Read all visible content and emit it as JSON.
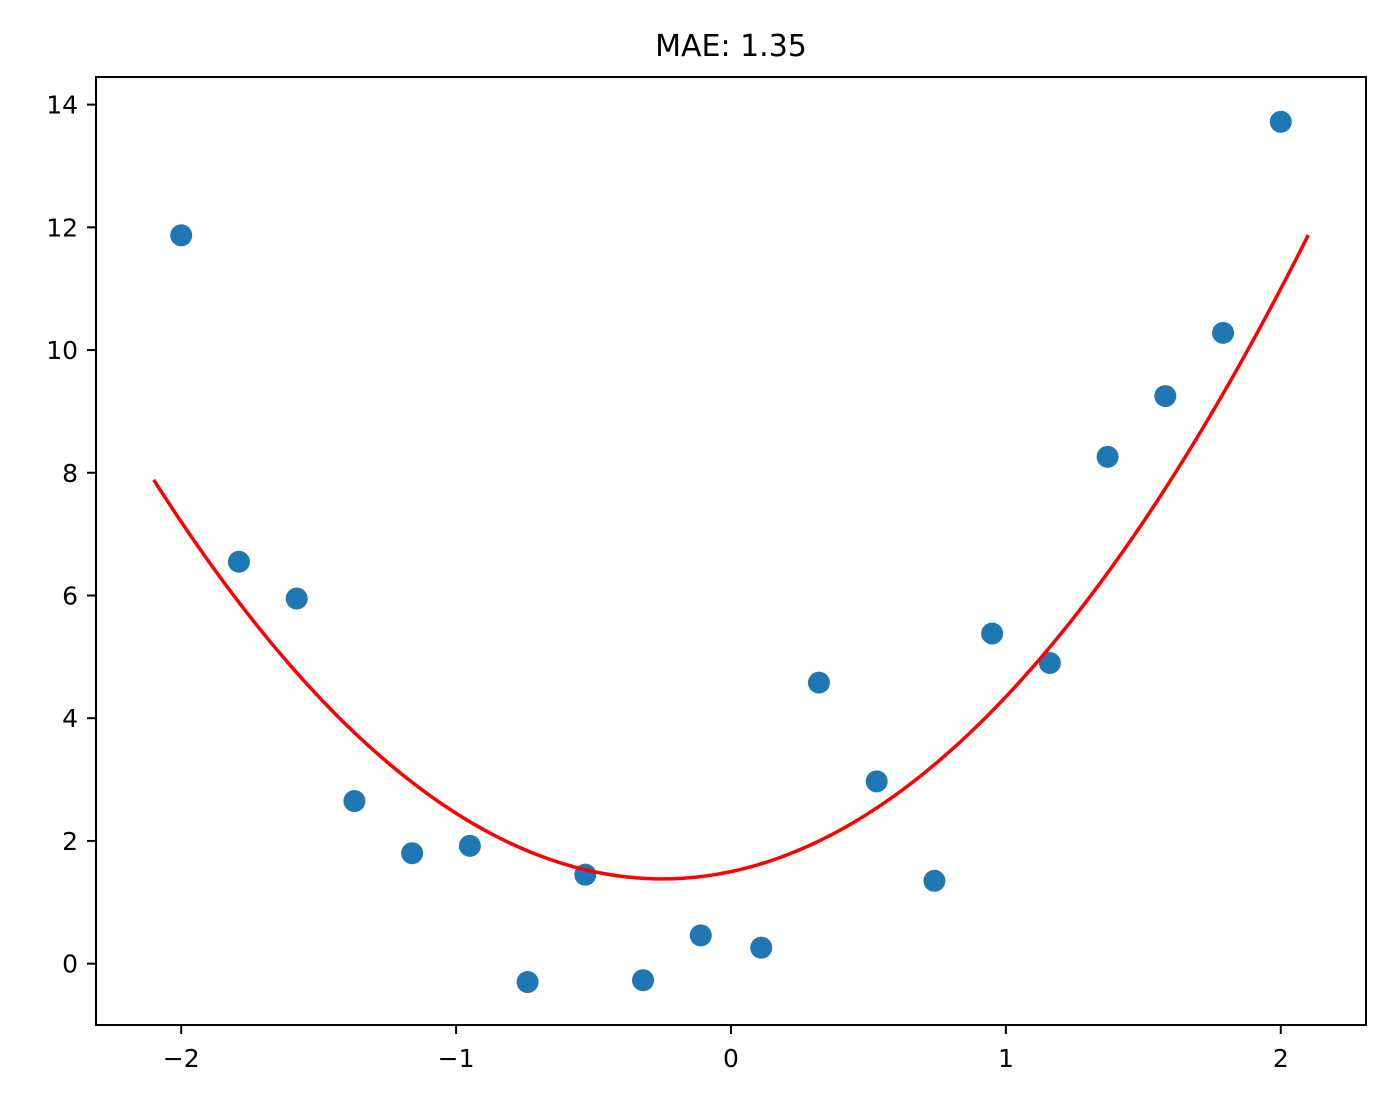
{
  "chart_data": {
    "type": "scatter",
    "title": "MAE: 1.35",
    "xlabel": "",
    "ylabel": "",
    "xlim": [
      -2.31,
      2.31
    ],
    "ylim": [
      -1.0,
      14.45
    ],
    "grid": false,
    "x_ticks": [
      -2,
      -1,
      0,
      1,
      2
    ],
    "x_tick_labels": [
      "−2",
      "−1",
      "0",
      "1",
      "2"
    ],
    "y_ticks": [
      0,
      2,
      4,
      6,
      8,
      10,
      12,
      14
    ],
    "y_tick_labels": [
      "0",
      "2",
      "4",
      "6",
      "8",
      "10",
      "12",
      "14"
    ],
    "series": [
      {
        "kind": "points",
        "color": "#1f77b4",
        "points": [
          {
            "x": -2.0,
            "y": 11.87
          },
          {
            "x": -1.79,
            "y": 6.55
          },
          {
            "x": -1.58,
            "y": 5.95
          },
          {
            "x": -1.37,
            "y": 2.65
          },
          {
            "x": -1.16,
            "y": 1.8
          },
          {
            "x": -0.95,
            "y": 1.92
          },
          {
            "x": -0.74,
            "y": -0.3
          },
          {
            "x": -0.53,
            "y": 1.45
          },
          {
            "x": -0.32,
            "y": -0.27
          },
          {
            "x": -0.11,
            "y": 0.46
          },
          {
            "x": 0.11,
            "y": 0.26
          },
          {
            "x": 0.32,
            "y": 4.58
          },
          {
            "x": 0.53,
            "y": 2.97
          },
          {
            "x": 0.74,
            "y": 1.35
          },
          {
            "x": 0.95,
            "y": 5.38
          },
          {
            "x": 1.16,
            "y": 4.9
          },
          {
            "x": 1.37,
            "y": 8.26
          },
          {
            "x": 1.58,
            "y": 9.25
          },
          {
            "x": 1.79,
            "y": 10.28
          },
          {
            "x": 2.0,
            "y": 13.72
          }
        ]
      },
      {
        "kind": "curve",
        "color": "#ff0000",
        "x_range": [
          -2.1,
          2.1
        ],
        "quadratic_coefficients": {
          "a": 1.9,
          "b": 0.95,
          "c": 1.5
        }
      }
    ]
  }
}
